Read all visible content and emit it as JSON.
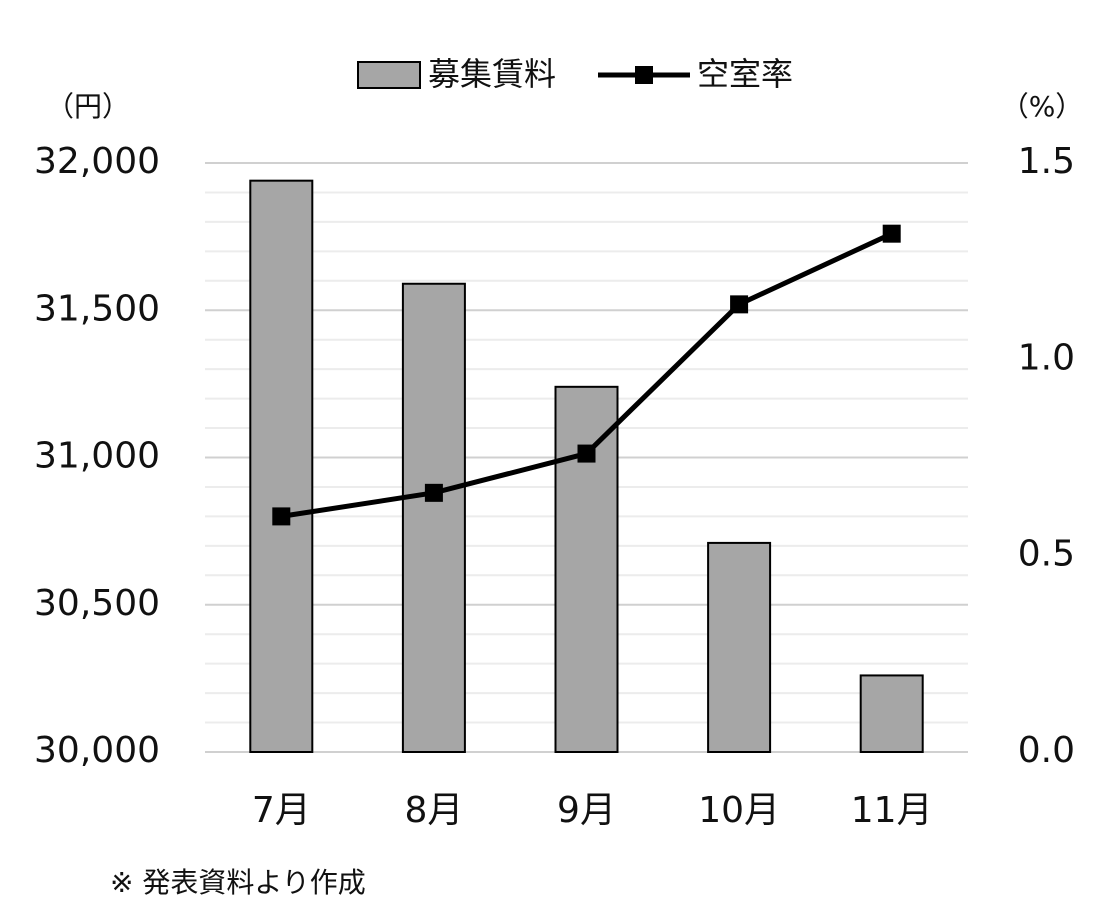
{
  "chart_data": {
    "type": "bar_line",
    "categories": [
      "7月",
      "8月",
      "9月",
      "10月",
      "11月"
    ],
    "series": [
      {
        "name": "募集賃料",
        "type": "bar",
        "color": "#a6a6a6",
        "values": [
          31940,
          31590,
          31240,
          30710,
          30260
        ]
      },
      {
        "name": "空室率",
        "type": "line",
        "color": "#000000",
        "axis": "y2",
        "values": [
          0.6,
          0.66,
          0.76,
          1.14,
          1.32
        ]
      }
    ],
    "y_unit": "（円）",
    "y2_unit": "（%）",
    "ylim": [
      30000,
      32000
    ],
    "yticks": [
      {
        "value": 30000,
        "label": "30,000"
      },
      {
        "value": 30500,
        "label": "30,500"
      },
      {
        "value": 31000,
        "label": "31,000"
      },
      {
        "value": 31500,
        "label": "31,500"
      },
      {
        "value": 32000,
        "label": "32,000"
      }
    ],
    "minor_grid": [
      30100,
      30200,
      30300,
      30400,
      30600,
      30700,
      30800,
      30900,
      31100,
      31200,
      31300,
      31400,
      31600,
      31700,
      31800,
      31900
    ],
    "y2lim": [
      0,
      1.5
    ],
    "y2ticks": [
      {
        "value": 0,
        "label": "0.0"
      },
      0.5,
      {
        "value": 1,
        "label": "1.0"
      },
      1.5
    ],
    "grid": true,
    "legend": "top",
    "note": "※ 発表資料より作成"
  }
}
